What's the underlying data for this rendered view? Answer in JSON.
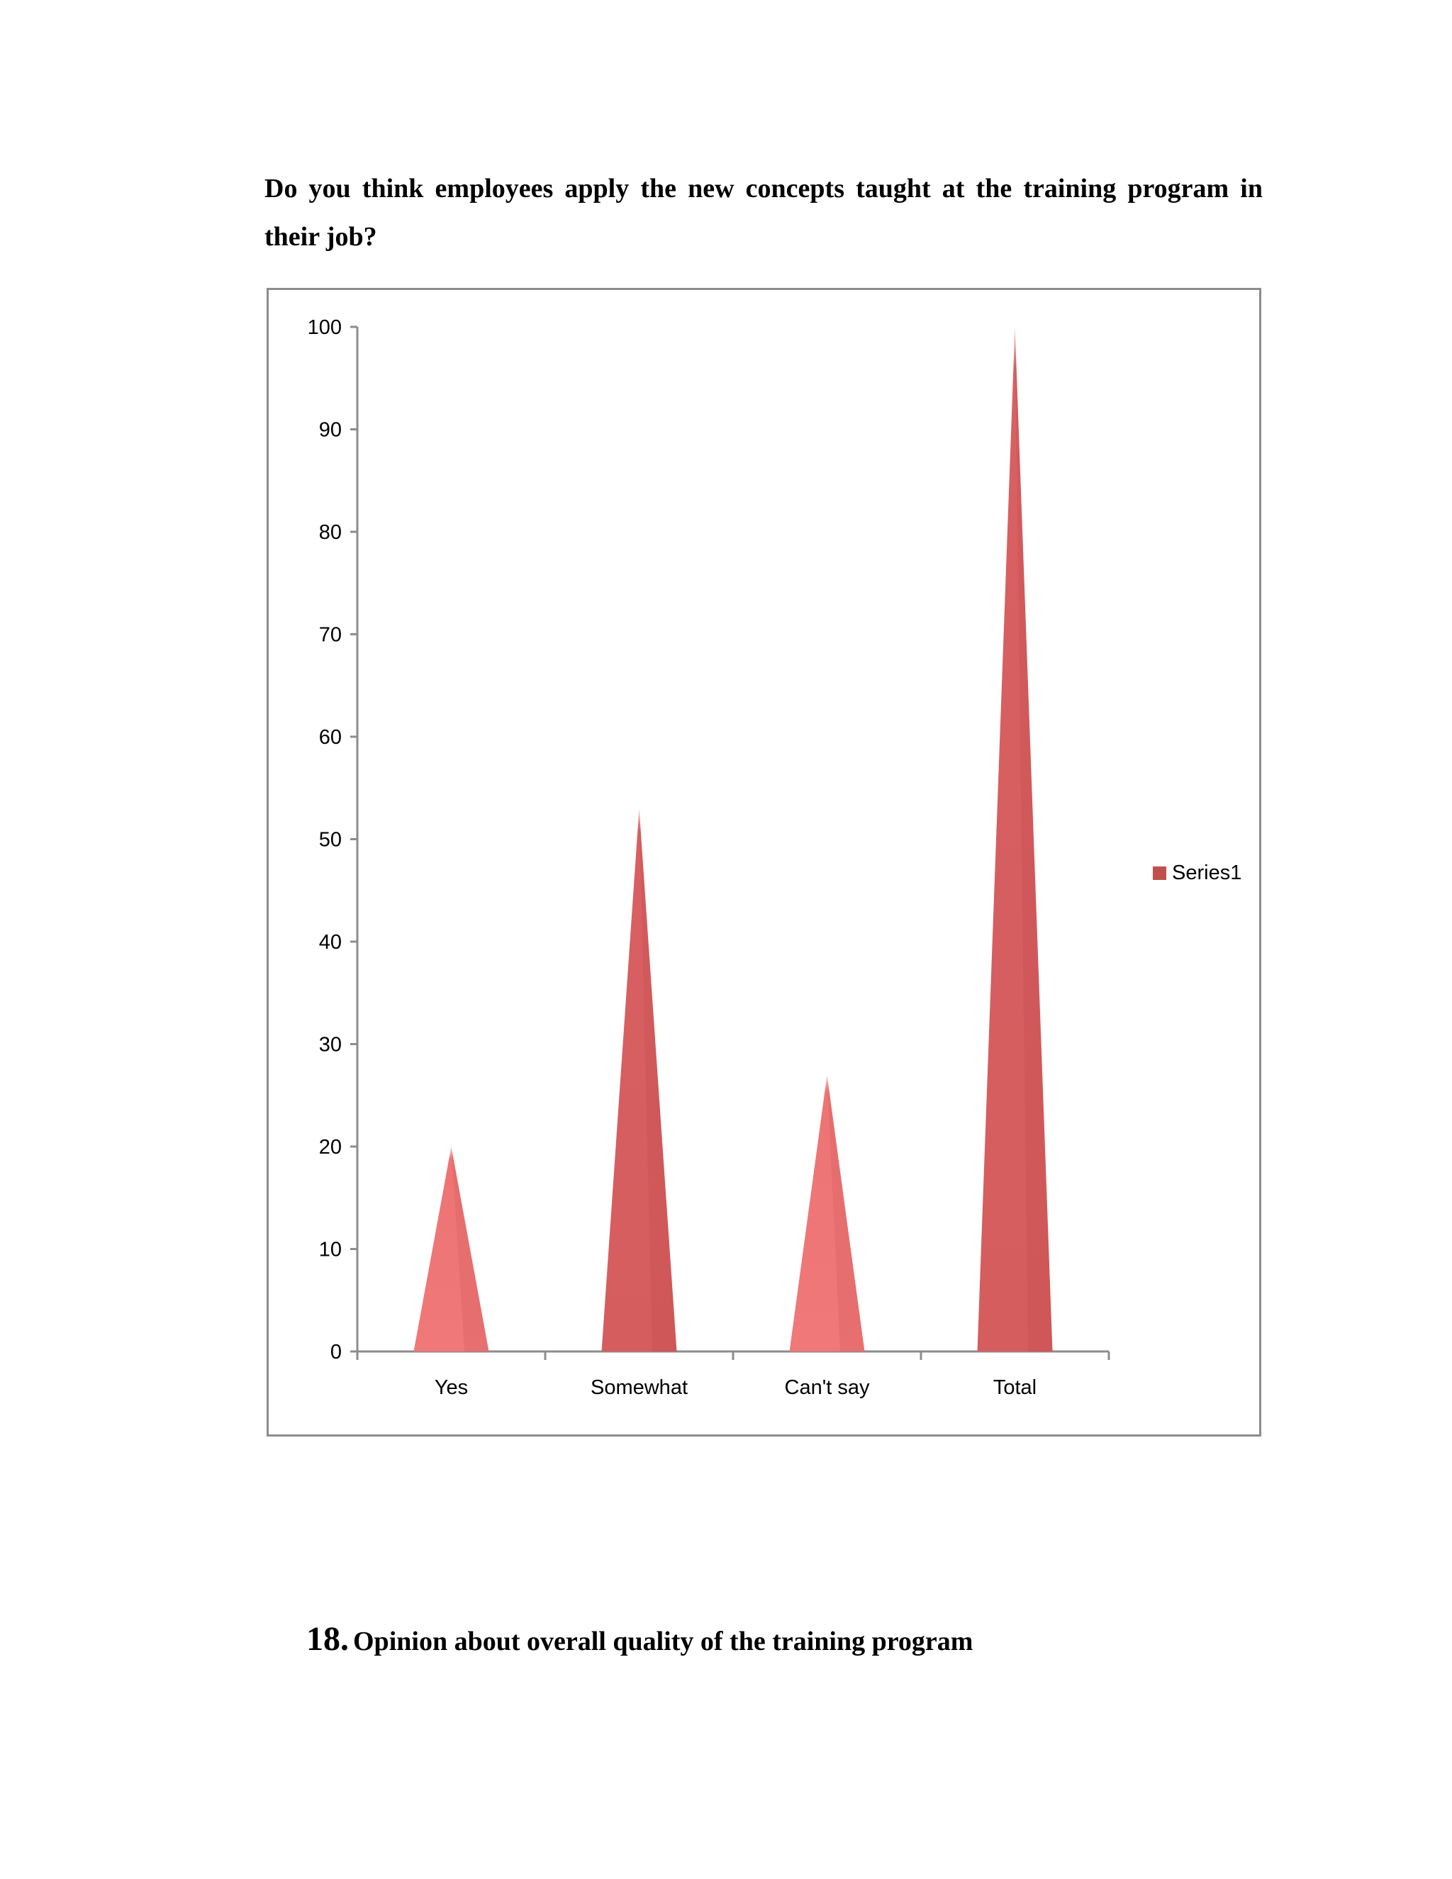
{
  "document": {
    "question": "Do you think employees apply the new concepts taught at the training program in their job?",
    "section_number": "18.",
    "section_title": "Opinion about overall quality of the training program"
  },
  "colors": {
    "light_cone": "#ee7474",
    "dark_cone": "#d55d5e",
    "legend_swatch": "#c0504d",
    "axis": "#8c8c8c"
  },
  "chart_data": {
    "type": "bar",
    "bar_shape": "cone",
    "categories": [
      "Yes",
      "Somewhat",
      "Can't say",
      "Total"
    ],
    "series": [
      {
        "name": "Series1",
        "values": [
          20,
          53,
          27,
          100
        ]
      }
    ],
    "ylim": [
      0,
      100
    ],
    "yticks": [
      "0",
      "10",
      "20",
      "30",
      "40",
      "50",
      "60",
      "70",
      "80",
      "90",
      "100"
    ],
    "grid": false,
    "legend": "right"
  }
}
